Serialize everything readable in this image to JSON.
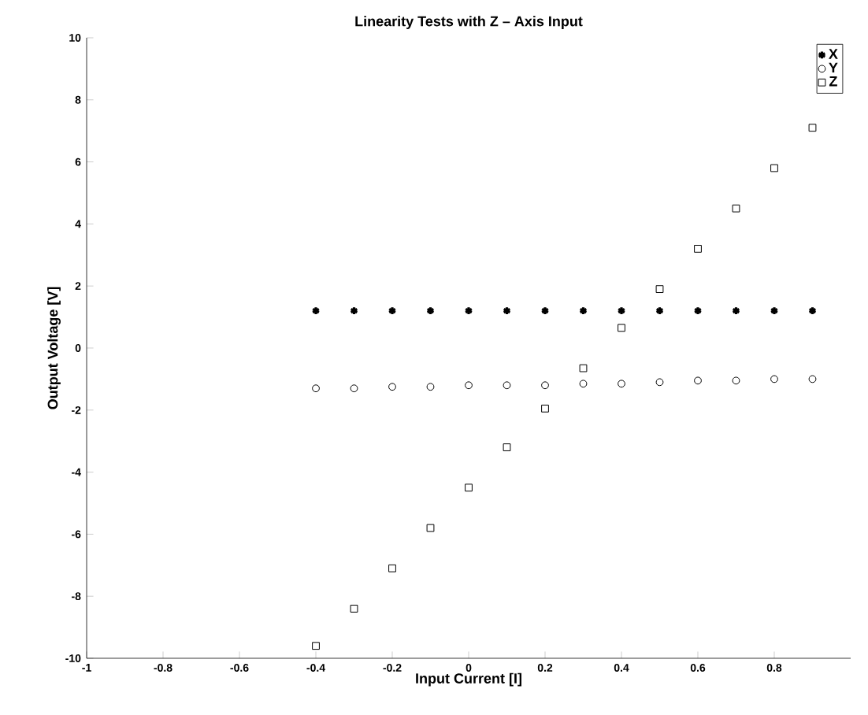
{
  "chart_data": {
    "type": "scatter",
    "title": "Linearity Tests with Z – Axis Input",
    "xlabel": "Input Current [I]",
    "ylabel": "Output Voltage [V]",
    "x": [
      -0.4,
      -0.3,
      -0.2,
      -0.1,
      0,
      0.1,
      0.2,
      0.3,
      0.4,
      0.5,
      0.6,
      0.7,
      0.8,
      0.9
    ],
    "series": [
      {
        "name": "X",
        "color": "#000000",
        "marker": "cross",
        "values": [
          1.2,
          1.2,
          1.2,
          1.2,
          1.2,
          1.2,
          1.2,
          1.2,
          1.2,
          1.2,
          1.2,
          1.2,
          1.2,
          1.2
        ]
      },
      {
        "name": "Y",
        "color": "#000000",
        "marker": "circle",
        "values": [
          -1.3,
          -1.3,
          -1.25,
          -1.25,
          -1.2,
          -1.2,
          -1.2,
          -1.15,
          -1.15,
          -1.1,
          -1.05,
          -1.05,
          -1.0,
          -1.0
        ]
      },
      {
        "name": "Z",
        "color": "#000000",
        "marker": "square",
        "values": [
          -9.6,
          -8.4,
          -7.1,
          -5.8,
          -4.5,
          -3.2,
          -1.95,
          -0.65,
          0.65,
          1.9,
          3.2,
          4.5,
          5.8,
          7.1
        ]
      }
    ],
    "xlim": [
      -1,
      1
    ],
    "ylim": [
      -10,
      10
    ],
    "xticks": [
      -1,
      -0.8,
      -0.6,
      -0.4,
      -0.2,
      0,
      0.2,
      0.4,
      0.6,
      0.8
    ],
    "yticks": [
      -10,
      -8,
      -6,
      -4,
      -2,
      0,
      2,
      4,
      6,
      8,
      10
    ],
    "grid": false,
    "legend": "top right"
  }
}
